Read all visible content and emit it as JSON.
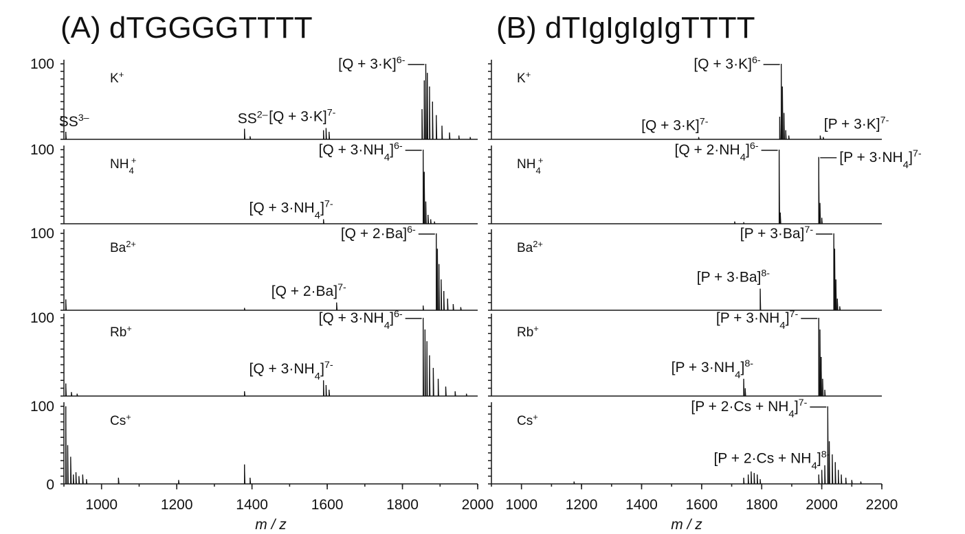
{
  "chart_data": [
    {
      "type": "line",
      "title": "(A) dTGGGGTTTT",
      "xlabel": "m / z",
      "xlim": [
        900,
        2000
      ],
      "xticks": [
        "1000",
        "1200",
        "1400",
        "1600",
        "1800",
        "2000"
      ],
      "ylim": [
        0,
        100
      ],
      "yticks": [
        "100",
        "0"
      ],
      "panels": [
        {
          "ion": "K+",
          "ion_base": "K",
          "ion_sup": "+",
          "ion_sub": "",
          "peaks": [
            [
              905,
              10
            ],
            [
              1380,
              14
            ],
            [
              1395,
              4
            ],
            [
              1590,
              12
            ],
            [
              1597,
              15
            ],
            [
              1605,
              10
            ],
            [
              1852,
              40
            ],
            [
              1858,
              78
            ],
            [
              1862,
              100
            ],
            [
              1866,
              88
            ],
            [
              1872,
              70
            ],
            [
              1880,
              50
            ],
            [
              1890,
              32
            ],
            [
              1905,
              18
            ],
            [
              1925,
              9
            ],
            [
              1950,
              5
            ],
            [
              1980,
              3
            ]
          ],
          "annotations": [
            {
              "text": "[Q + 3·K]",
              "sup": "6-",
              "x": 1862,
              "y": 100,
              "side": "left"
            },
            {
              "text": "[Q + 3·K]",
              "sup": "7-",
              "x": 1597,
              "y": 15,
              "side": "left"
            },
            {
              "text": "SS",
              "sup": "3–",
              "x": 905,
              "y": 10,
              "side": "left"
            },
            {
              "text": "SS",
              "sup": "2–",
              "x": 1380,
              "y": 14,
              "side": "left"
            }
          ]
        },
        {
          "ion": "NH4+",
          "ion_base": "NH",
          "ion_sup": "+",
          "ion_sub": "4",
          "peaks": [
            [
              1590,
              6
            ],
            [
              1855,
              100
            ],
            [
              1858,
              70
            ],
            [
              1862,
              30
            ],
            [
              1868,
              12
            ],
            [
              1875,
              6
            ],
            [
              1885,
              3
            ]
          ],
          "annotations": [
            {
              "text": "[Q + 3·NH4]",
              "sup": "6-",
              "x": 1855,
              "y": 100,
              "side": "left"
            },
            {
              "text": "[Q + 3·NH4]",
              "sup": "7-",
              "x": 1590,
              "y": 6,
              "side": "left"
            }
          ]
        },
        {
          "ion": "Ba2+",
          "ion_base": "Ba",
          "ion_sup": "2+",
          "ion_sub": "",
          "peaks": [
            [
              905,
              14
            ],
            [
              1380,
              3
            ],
            [
              1625,
              10
            ],
            [
              1855,
              6
            ],
            [
              1890,
              100
            ],
            [
              1893,
              80
            ],
            [
              1897,
              60
            ],
            [
              1903,
              40
            ],
            [
              1910,
              25
            ],
            [
              1920,
              15
            ],
            [
              1935,
              8
            ],
            [
              1955,
              4
            ]
          ],
          "annotations": [
            {
              "text": "[Q + 2·Ba]",
              "sup": "6-",
              "x": 1890,
              "y": 100,
              "side": "left"
            },
            {
              "text": "[Q + 2·Ba]",
              "sup": "7-",
              "x": 1625,
              "y": 10,
              "side": "left"
            }
          ]
        },
        {
          "ion": "Rb+",
          "ion_base": "Rb",
          "ion_sup": "+",
          "ion_sub": "",
          "peaks": [
            [
              905,
              16
            ],
            [
              920,
              5
            ],
            [
              935,
              3
            ],
            [
              1380,
              6
            ],
            [
              1590,
              20
            ],
            [
              1597,
              14
            ],
            [
              1605,
              8
            ],
            [
              1855,
              100
            ],
            [
              1860,
              85
            ],
            [
              1865,
              70
            ],
            [
              1872,
              52
            ],
            [
              1882,
              36
            ],
            [
              1895,
              22
            ],
            [
              1915,
              12
            ],
            [
              1940,
              6
            ],
            [
              1970,
              3
            ]
          ],
          "annotations": [
            {
              "text": "[Q + 3·NH4]",
              "sup": "6-",
              "x": 1855,
              "y": 100,
              "side": "left"
            },
            {
              "text": "[Q + 3·NH4]",
              "sup": "7-",
              "x": 1590,
              "y": 20,
              "side": "left"
            }
          ]
        },
        {
          "ion": "Cs+",
          "ion_base": "Cs",
          "ion_sup": "+",
          "ion_sub": "",
          "peaks": [
            [
              905,
              100
            ],
            [
              910,
              50
            ],
            [
              918,
              35
            ],
            [
              925,
              12
            ],
            [
              932,
              15
            ],
            [
              940,
              10
            ],
            [
              950,
              12
            ],
            [
              960,
              6
            ],
            [
              1045,
              8
            ],
            [
              1205,
              5
            ],
            [
              1380,
              25
            ],
            [
              1395,
              8
            ]
          ],
          "annotations": []
        }
      ]
    },
    {
      "type": "line",
      "title": "(B) dTIgIgIgIgTTTT",
      "xlabel": "m / z",
      "xlim": [
        900,
        2200
      ],
      "xticks": [
        "1000",
        "1200",
        "1400",
        "1600",
        "1800",
        "2000",
        "2200"
      ],
      "ylim": [
        0,
        100
      ],
      "yticks": [],
      "panels": [
        {
          "ion": "K+",
          "ion_base": "K",
          "ion_sup": "+",
          "ion_sub": "",
          "peaks": [
            [
              1590,
              3
            ],
            [
              1860,
              30
            ],
            [
              1865,
              100
            ],
            [
              1869,
              70
            ],
            [
              1874,
              35
            ],
            [
              1880,
              12
            ],
            [
              1890,
              5
            ],
            [
              1995,
              5
            ],
            [
              2005,
              3
            ]
          ],
          "annotations": [
            {
              "text": "[Q + 3·K]",
              "sup": "6-",
              "x": 1865,
              "y": 100,
              "side": "left"
            },
            {
              "text": "[Q + 3·K]",
              "sup": "7-",
              "x": 1590,
              "y": 3,
              "side": "left"
            },
            {
              "text": "[P + 3·K]",
              "sup": "7-",
              "x": 1998,
              "y": 5,
              "side": "right"
            }
          ]
        },
        {
          "ion": "NH4+",
          "ion_base": "NH",
          "ion_sup": "+",
          "ion_sub": "4",
          "peaks": [
            [
              1710,
              3
            ],
            [
              1740,
              2
            ],
            [
              1858,
              100
            ],
            [
              1862,
              15
            ],
            [
              1990,
              90
            ],
            [
              1994,
              28
            ],
            [
              2000,
              8
            ]
          ],
          "annotations": [
            {
              "text": "[Q + 2·NH4]",
              "sup": "6-",
              "x": 1858,
              "y": 100,
              "side": "left"
            },
            {
              "text": "[P + 3·NH4]",
              "sup": "7-",
              "x": 1990,
              "y": 90,
              "side": "right"
            }
          ]
        },
        {
          "ion": "Ba2+",
          "ion_base": "Ba",
          "ion_sup": "2+",
          "ion_sub": "",
          "peaks": [
            [
              1795,
              28
            ],
            [
              2040,
              100
            ],
            [
              2043,
              80
            ],
            [
              2047,
              40
            ],
            [
              2052,
              15
            ],
            [
              2060,
              5
            ]
          ],
          "annotations": [
            {
              "text": "[P + 3·Ba]",
              "sup": "7-",
              "x": 2040,
              "y": 100,
              "side": "left"
            },
            {
              "text": "[P + 3·Ba]",
              "sup": "8-",
              "x": 1795,
              "y": 28,
              "side": "left"
            }
          ]
        },
        {
          "ion": "Rb+",
          "ion_base": "Rb",
          "ion_sup": "+",
          "ion_sub": "",
          "peaks": [
            [
              1740,
              22
            ],
            [
              1745,
              10
            ],
            [
              1990,
              100
            ],
            [
              1994,
              85
            ],
            [
              1998,
              50
            ],
            [
              2003,
              22
            ],
            [
              2010,
              8
            ]
          ],
          "annotations": [
            {
              "text": "[P + 3·NH4]",
              "sup": "7-",
              "x": 1990,
              "y": 100,
              "side": "left"
            },
            {
              "text": "[P + 3·NH4]",
              "sup": "8-",
              "x": 1740,
              "y": 22,
              "side": "left"
            }
          ]
        },
        {
          "ion": "Cs+",
          "ion_base": "Cs",
          "ion_sup": "+",
          "ion_sub": "",
          "peaks": [
            [
              1175,
              3
            ],
            [
              1740,
              8
            ],
            [
              1755,
              12
            ],
            [
              1765,
              16
            ],
            [
              1775,
              14
            ],
            [
              1785,
              12
            ],
            [
              1795,
              6
            ],
            [
              1990,
              12
            ],
            [
              2000,
              18
            ],
            [
              2010,
              24
            ],
            [
              2020,
              100
            ],
            [
              2025,
              55
            ],
            [
              2035,
              38
            ],
            [
              2045,
              28
            ],
            [
              2055,
              18
            ],
            [
              2065,
              12
            ],
            [
              2080,
              8
            ],
            [
              2100,
              5
            ],
            [
              2130,
              3
            ]
          ],
          "annotations": [
            {
              "text": "[P + 2·Cs + NH4]",
              "sup": "7-",
              "x": 2020,
              "y": 100,
              "side": "left"
            },
            {
              "text": "[P + 2·Cs + NH4]",
              "sup": "8-",
              "x": 1995,
              "y": 18,
              "side": "left"
            }
          ]
        }
      ]
    }
  ]
}
